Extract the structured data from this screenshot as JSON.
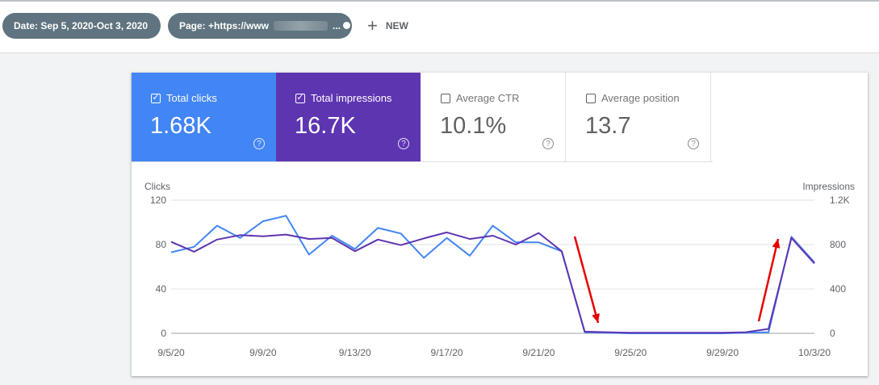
{
  "filters": {
    "date_chip": "Date: Sep 5, 2020-Oct 3, 2020",
    "page_chip_prefix": "Page: +https://www",
    "page_chip_suffix": "...",
    "new_label": "NEW"
  },
  "metrics": {
    "clicks": {
      "label": "Total clicks",
      "value": "1.68K",
      "checked": true,
      "color": "#4285f4"
    },
    "impressions": {
      "label": "Total impressions",
      "value": "16.7K",
      "checked": true,
      "color": "#5e35b1"
    },
    "ctr": {
      "label": "Average CTR",
      "value": "10.1%",
      "checked": false
    },
    "position": {
      "label": "Average position",
      "value": "13.7",
      "checked": false
    }
  },
  "chart_data": {
    "type": "line",
    "left_axis_title": "Clicks",
    "right_axis_title": "Impressions",
    "left_ticks": [
      "120",
      "80",
      "40",
      "0"
    ],
    "right_ticks": [
      "1.2K",
      "800",
      "400",
      "0"
    ],
    "x_ticks": [
      "9/5/20",
      "9/9/20",
      "9/13/20",
      "9/17/20",
      "9/21/20",
      "9/25/20",
      "9/29/20",
      "10/3/20"
    ],
    "x": [
      "9/5/20",
      "9/6/20",
      "9/7/20",
      "9/8/20",
      "9/9/20",
      "9/10/20",
      "9/11/20",
      "9/12/20",
      "9/13/20",
      "9/14/20",
      "9/15/20",
      "9/16/20",
      "9/17/20",
      "9/18/20",
      "9/19/20",
      "9/20/20",
      "9/21/20",
      "9/22/20",
      "9/23/20",
      "9/24/20",
      "9/25/20",
      "9/26/20",
      "9/27/20",
      "9/28/20",
      "9/29/20",
      "9/30/20",
      "10/1/20",
      "10/2/20",
      "10/3/20"
    ],
    "ylim_left": [
      0,
      120
    ],
    "ylim_right": [
      0,
      1200
    ],
    "series": [
      {
        "axis": "left",
        "color": "#4285f4",
        "values": [
          73,
          78,
          97,
          86,
          101,
          106,
          71,
          88,
          76,
          95,
          90,
          68,
          86,
          70,
          97,
          82,
          82,
          74,
          1,
          0.5,
          0,
          0,
          0,
          0,
          0,
          0.5,
          1,
          87,
          64
        ]
      },
      {
        "axis": "right",
        "color": "#5e35b1",
        "values": [
          825,
          735,
          845,
          885,
          875,
          890,
          850,
          860,
          740,
          845,
          795,
          855,
          910,
          850,
          880,
          800,
          905,
          740,
          15,
          10,
          5,
          5,
          5,
          5,
          5,
          10,
          40,
          860,
          630
        ]
      }
    ],
    "grid": true,
    "annotation_arrows": 2,
    "annotation_color": "#e60000"
  }
}
